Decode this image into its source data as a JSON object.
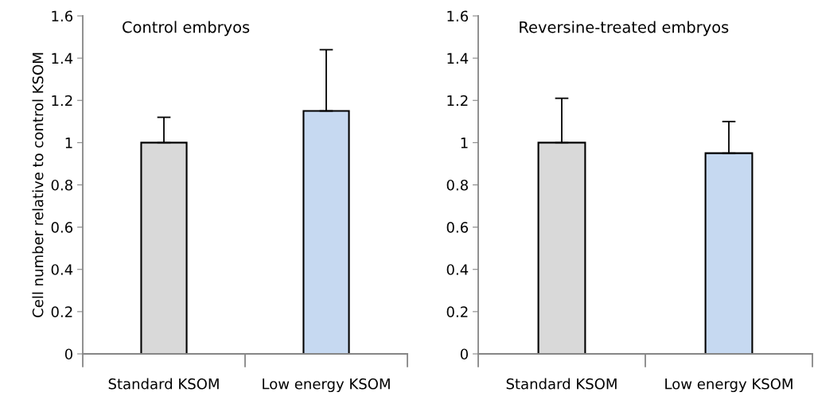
{
  "chart_data": [
    {
      "type": "bar",
      "title": "Control embryos",
      "ylabel": "Cell number relative to control KSOM",
      "categories": [
        "Standard KSOM",
        "Low energy KSOM"
      ],
      "values": [
        1.0,
        1.15
      ],
      "colors": [
        "#d9d9d9",
        "#c6d9f1"
      ],
      "errors": [
        [
          1.0,
          1.12
        ],
        [
          1.15,
          1.44
        ]
      ],
      "ylim": [
        0,
        1.6
      ],
      "yticks": [
        0,
        0.2,
        0.4,
        0.6,
        0.8,
        1,
        1.2,
        1.4,
        1.6
      ],
      "grid": false,
      "legend": false
    },
    {
      "type": "bar",
      "title": "Reversine-treated embryos",
      "categories": [
        "Standard KSOM",
        "Low energy KSOM"
      ],
      "values": [
        1.0,
        0.95
      ],
      "colors": [
        "#d9d9d9",
        "#c6d9f1"
      ],
      "errors": [
        [
          1.0,
          1.21
        ],
        [
          0.95,
          1.1
        ]
      ],
      "ylim": [
        0,
        1.6
      ],
      "yticks": [
        0,
        0.2,
        0.4,
        0.6,
        0.8,
        1,
        1.2,
        1.4,
        1.6
      ],
      "grid": false,
      "legend": false
    }
  ]
}
